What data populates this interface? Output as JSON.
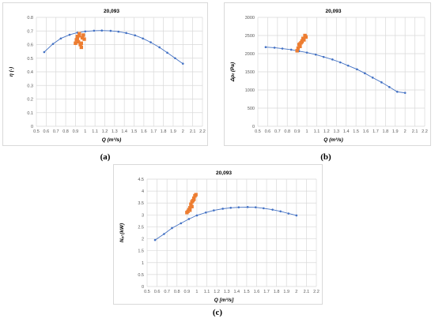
{
  "colors": {
    "curve": "#4472c4",
    "measured": "#ed7d31",
    "grid": "#d9d9d9",
    "axis_text": "#595959"
  },
  "panel_labels": [
    "(a)",
    "(b)",
    "(c)"
  ],
  "chart_data": [
    {
      "type": "scatter",
      "title": "20,093",
      "xlabel": "Q (m³/s)",
      "ylabel": "η (-)",
      "xlim": [
        0.5,
        2.2
      ],
      "ylim": [
        0,
        0.8
      ],
      "x_ticks": [
        "0.5",
        "0.6",
        "0.7",
        "0.8",
        "0.9",
        "1",
        "1.1",
        "1.2",
        "1.3",
        "1.4",
        "1.5",
        "1.6",
        "1.7",
        "1.8",
        "1.9",
        "2",
        "2.1",
        "2.2"
      ],
      "y_ticks": [
        "0",
        "0.1",
        "0.2",
        "0.3",
        "0.4",
        "0.5",
        "0.6",
        "0.7",
        "0.8"
      ],
      "grid": true,
      "series": [
        {
          "style": "line-marker",
          "color": "#4472c4",
          "x": [
            0.58,
            0.67,
            0.75,
            0.84,
            0.92,
            1.0,
            1.09,
            1.17,
            1.26,
            1.34,
            1.42,
            1.51,
            1.59,
            1.67,
            1.76,
            1.84,
            1.92,
            2.0
          ],
          "y": [
            0.545,
            0.605,
            0.645,
            0.672,
            0.688,
            0.697,
            0.702,
            0.703,
            0.701,
            0.695,
            0.685,
            0.668,
            0.645,
            0.617,
            0.58,
            0.54,
            0.5,
            0.46
          ]
        },
        {
          "style": "square-marker",
          "color": "#ed7d31",
          "x": [
            0.9,
            0.91,
            0.92,
            0.93,
            0.94,
            0.95,
            0.96,
            0.97,
            0.98,
            0.99,
            0.92,
            0.94,
            0.96
          ],
          "y": [
            0.61,
            0.635,
            0.66,
            0.62,
            0.68,
            0.6,
            0.58,
            0.65,
            0.67,
            0.64,
            0.645,
            0.665,
            0.61
          ]
        }
      ]
    },
    {
      "type": "scatter",
      "title": "20,093",
      "xlabel": "Q (m³/s)",
      "ylabel": "Δpₜ (Pa)",
      "xlim": [
        0.5,
        2.2
      ],
      "ylim": [
        0,
        3000
      ],
      "x_ticks": [
        "0.5",
        "0.6",
        "0.7",
        "0.8",
        "0.9",
        "1",
        "1.1",
        "1.2",
        "1.3",
        "1.4",
        "1.5",
        "1.6",
        "1.7",
        "1.8",
        "1.9",
        "2",
        "2.1",
        "2.2"
      ],
      "y_ticks": [
        "0",
        "500",
        "1000",
        "1500",
        "2000",
        "2500",
        "3000"
      ],
      "grid": true,
      "series": [
        {
          "style": "line-marker",
          "color": "#4472c4",
          "x": [
            0.58,
            0.67,
            0.75,
            0.84,
            0.92,
            1.0,
            1.09,
            1.17,
            1.26,
            1.34,
            1.42,
            1.51,
            1.59,
            1.67,
            1.76,
            1.84,
            1.92,
            2.0
          ],
          "y": [
            2180,
            2165,
            2140,
            2110,
            2070,
            2030,
            1975,
            1910,
            1840,
            1760,
            1670,
            1570,
            1460,
            1340,
            1210,
            1080,
            950,
            920
          ]
        },
        {
          "style": "square-marker",
          "color": "#ed7d31",
          "x": [
            0.9,
            0.91,
            0.92,
            0.93,
            0.94,
            0.95,
            0.96,
            0.97,
            0.98,
            0.99,
            0.93,
            0.95
          ],
          "y": [
            2080,
            2150,
            2250,
            2200,
            2300,
            2350,
            2420,
            2380,
            2500,
            2460,
            2270,
            2330
          ]
        }
      ]
    },
    {
      "type": "scatter",
      "title": "20,093",
      "xlabel": "Q [m³/s]",
      "ylabel": "Nₑₗ (kW)",
      "xlim": [
        0.5,
        2.2
      ],
      "ylim": [
        0,
        4.5
      ],
      "x_ticks": [
        "0.5",
        "0.6",
        "0.7",
        "0.8",
        "0.9",
        "1",
        "1.1",
        "1.2",
        "1.3",
        "1.4",
        "1.5",
        "1.6",
        "1.7",
        "1.8",
        "1.9",
        "2",
        "2.1",
        "2.2"
      ],
      "y_ticks": [
        "0",
        "0.5",
        "1",
        "1.5",
        "2",
        "2.5",
        "3",
        "3.5",
        "4",
        "4.5"
      ],
      "grid": true,
      "series": [
        {
          "style": "line-marker",
          "color": "#4472c4",
          "x": [
            0.58,
            0.67,
            0.75,
            0.84,
            0.92,
            1.0,
            1.09,
            1.17,
            1.26,
            1.34,
            1.42,
            1.51,
            1.59,
            1.67,
            1.76,
            1.84,
            1.92,
            2.0
          ],
          "y": [
            1.95,
            2.2,
            2.45,
            2.65,
            2.83,
            2.98,
            3.1,
            3.19,
            3.26,
            3.3,
            3.32,
            3.33,
            3.32,
            3.28,
            3.22,
            3.15,
            3.06,
            2.98
          ]
        },
        {
          "style": "square-marker",
          "color": "#ed7d31",
          "x": [
            0.9,
            0.91,
            0.92,
            0.93,
            0.94,
            0.95,
            0.96,
            0.97,
            0.98,
            0.99,
            0.93,
            0.95,
            0.97
          ],
          "y": [
            3.1,
            3.15,
            3.22,
            3.3,
            3.45,
            3.55,
            3.6,
            3.7,
            3.8,
            3.85,
            3.2,
            3.35,
            3.65
          ]
        }
      ]
    }
  ]
}
